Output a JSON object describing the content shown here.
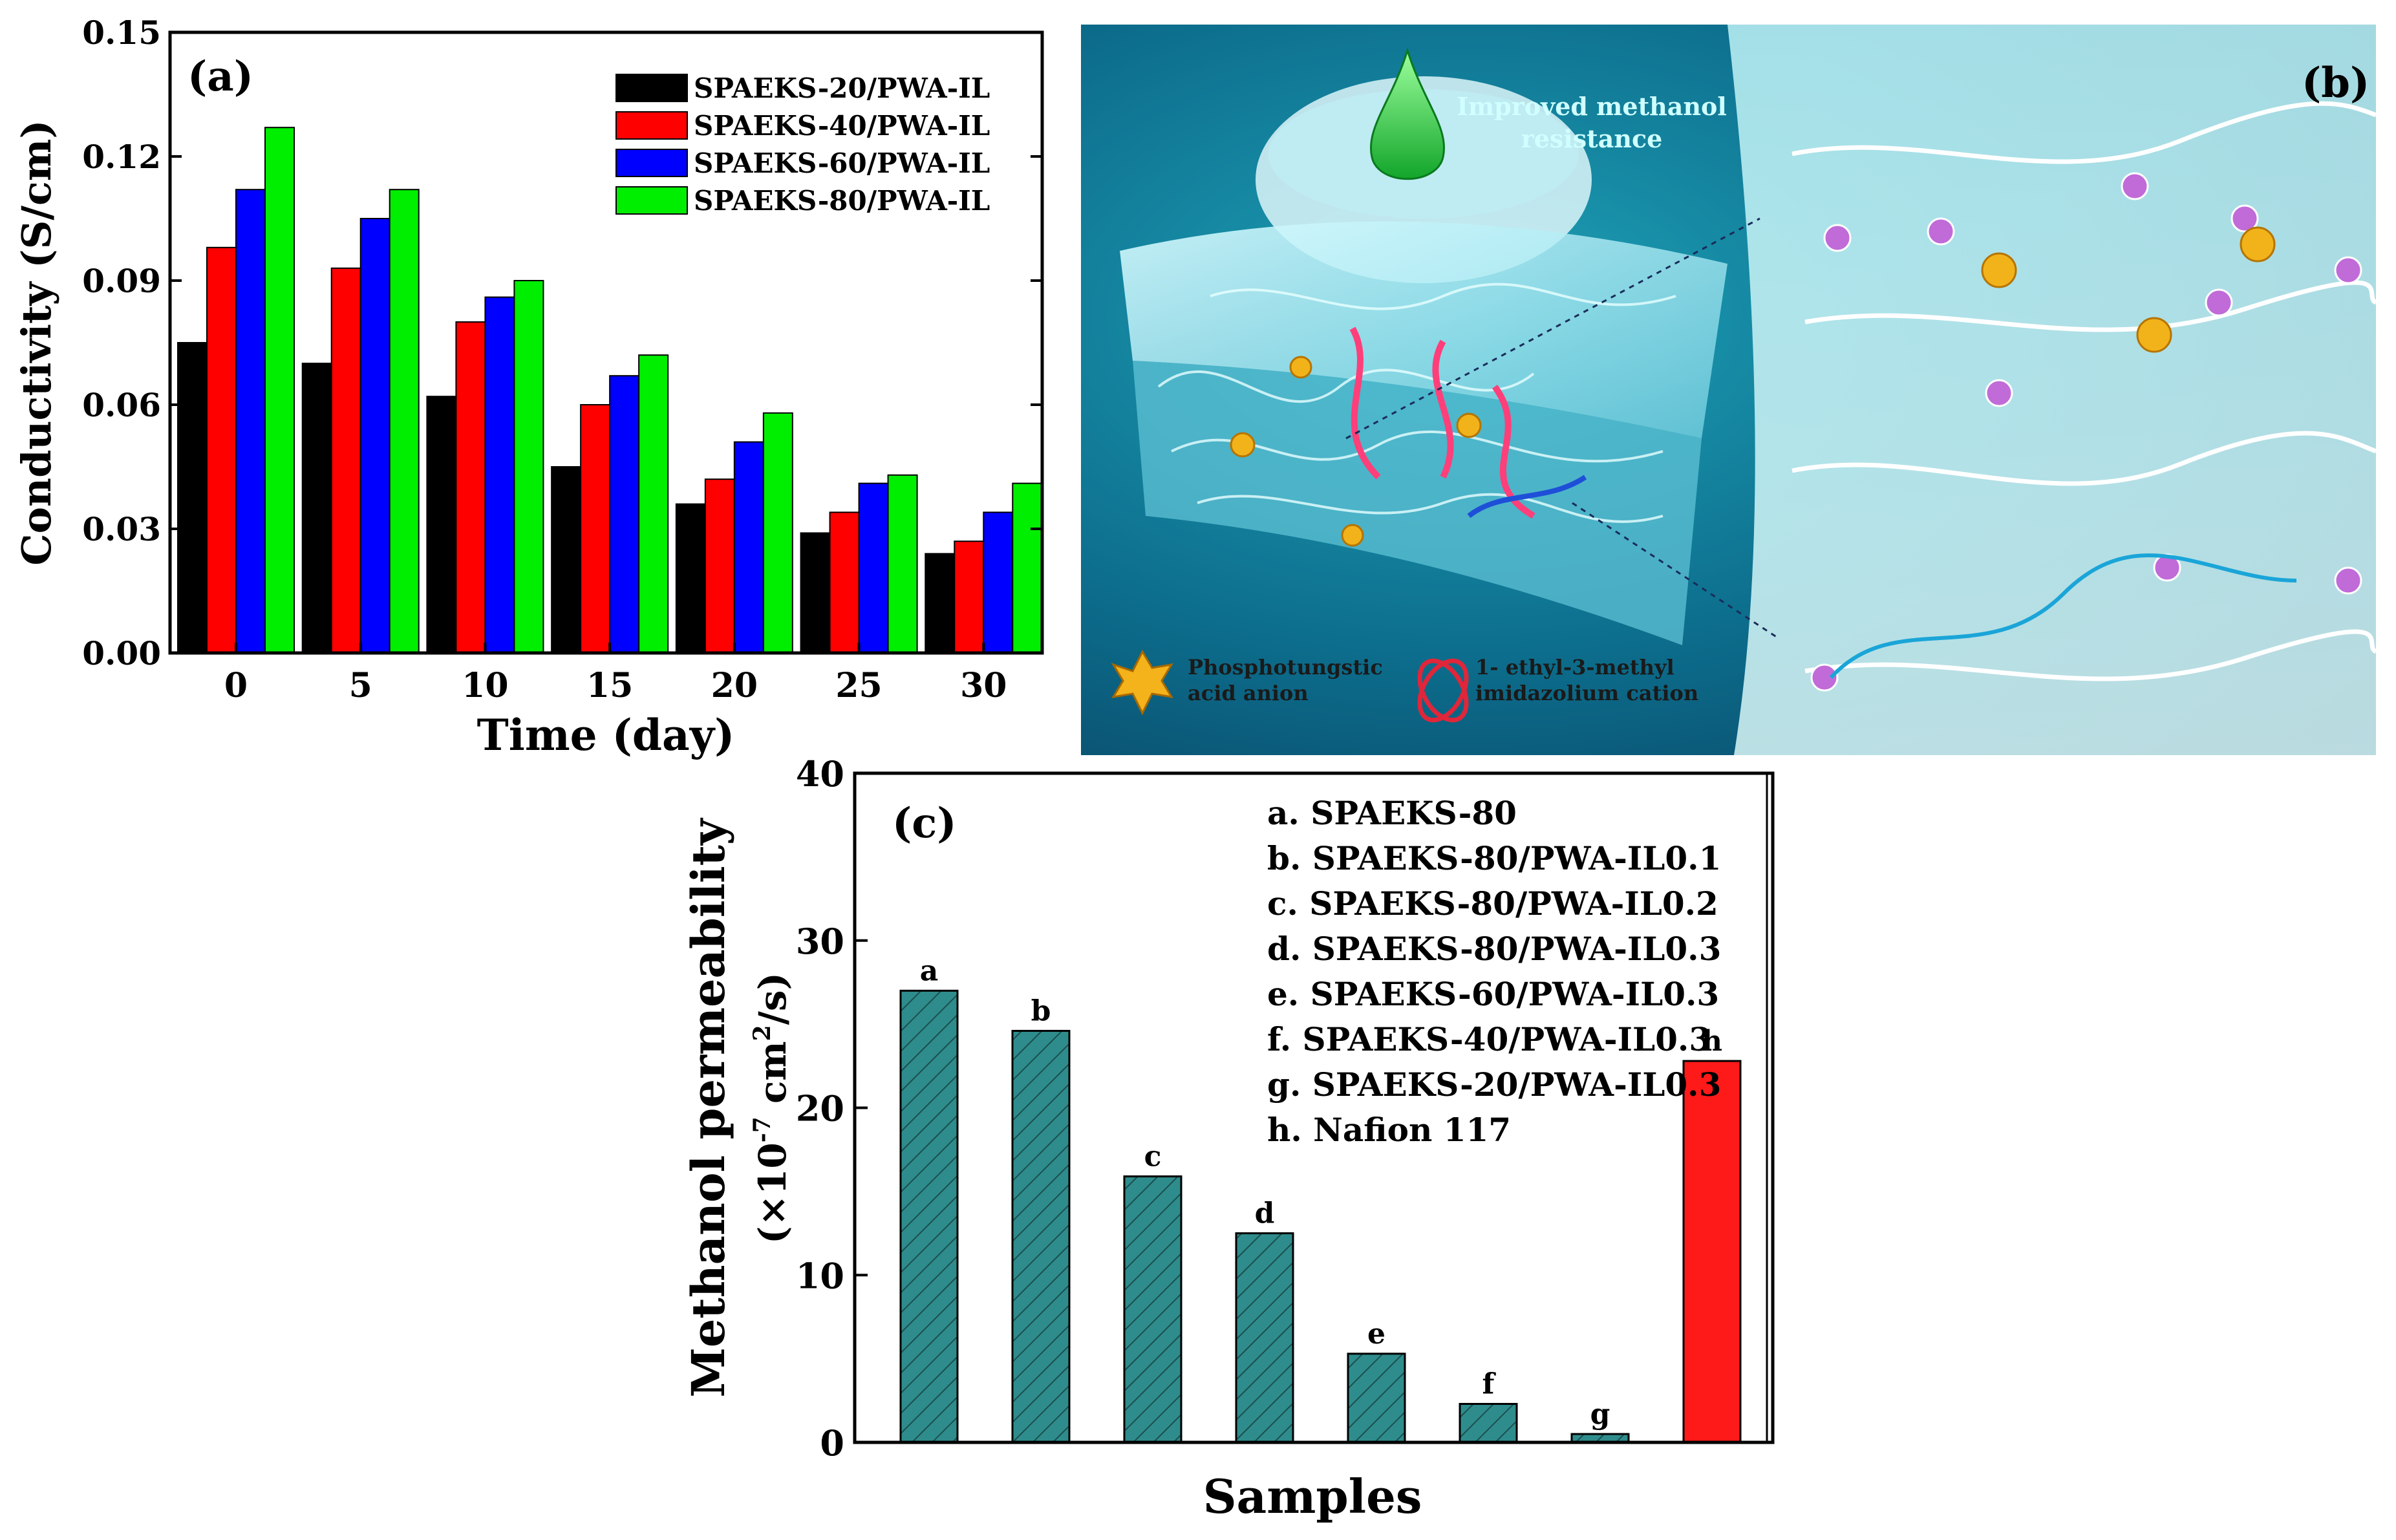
{
  "chart_data": [
    {
      "panel": "(a)",
      "type": "bar",
      "title": "",
      "xlabel": "Time (day)",
      "ylabel": "Conductivity (S/cm)",
      "ylim": [
        0,
        0.15
      ],
      "yticks": [
        "0.00",
        "0.03",
        "0.06",
        "0.09",
        "0.12",
        "0.15"
      ],
      "categories": [
        "0",
        "5",
        "10",
        "15",
        "20",
        "25",
        "30"
      ],
      "legend_position": "top-right",
      "series": [
        {
          "name": "SPAEKS-20/PWA-IL",
          "color": "#000000",
          "values": [
            0.075,
            0.07,
            0.062,
            0.045,
            0.036,
            0.029,
            0.024
          ]
        },
        {
          "name": "SPAEKS-40/PWA-IL",
          "color": "#ff0000",
          "values": [
            0.098,
            0.093,
            0.08,
            0.06,
            0.042,
            0.034,
            0.027
          ]
        },
        {
          "name": "SPAEKS-60/PWA-IL",
          "color": "#0000ff",
          "values": [
            0.112,
            0.105,
            0.086,
            0.067,
            0.051,
            0.041,
            0.034
          ]
        },
        {
          "name": "SPAEKS-80/PWA-IL",
          "color": "#00ee00",
          "values": [
            0.127,
            0.112,
            0.09,
            0.072,
            0.058,
            0.043,
            0.041
          ]
        }
      ]
    },
    {
      "panel": "(c)",
      "type": "bar",
      "title": "",
      "xlabel": "Samples",
      "ylabel_line1": "Methanol permeability",
      "ylabel_line2_prefix": "(×10",
      "ylabel_line2_exp1": "-7",
      "ylabel_line2_mid": " cm",
      "ylabel_line2_exp2": "2",
      "ylabel_line2_suffix": "/s)",
      "ylim": [
        0,
        40
      ],
      "yticks": [
        "0",
        "10",
        "20",
        "30",
        "40"
      ],
      "categories": [
        "a",
        "b",
        "c",
        "d",
        "e",
        "f",
        "g",
        "h"
      ],
      "values": [
        27.0,
        24.6,
        15.9,
        12.5,
        5.3,
        2.3,
        0.5,
        22.8
      ],
      "colors": [
        "#2f8c8c",
        "#2f8c8c",
        "#2f8c8c",
        "#2f8c8c",
        "#2f8c8c",
        "#2f8c8c",
        "#2f8c8c",
        "#ff1a1a"
      ],
      "legend": [
        "a. SPAEKS-80",
        "b. SPAEKS-80/PWA-IL0.1",
        "c. SPAEKS-80/PWA-IL0.2",
        "d. SPAEKS-80/PWA-IL0.3",
        "e. SPAEKS-60/PWA-IL0.3",
        "f. SPAEKS-40/PWA-IL0.3",
        "g. SPAEKS-20/PWA-IL0.3",
        "h. Nafion 117"
      ]
    }
  ],
  "scheme": {
    "panel_label": "(b)",
    "top_caption_line1": "Improved methanol",
    "top_caption_line2": "resistance",
    "legend_anion_line1": "Phosphotungstic",
    "legend_anion_line2": "acid anion",
    "legend_cation_line1": "1- ethyl-3-methyl",
    "legend_cation_line2": "imidazolium cation",
    "background_color": "#0f6e8c"
  }
}
